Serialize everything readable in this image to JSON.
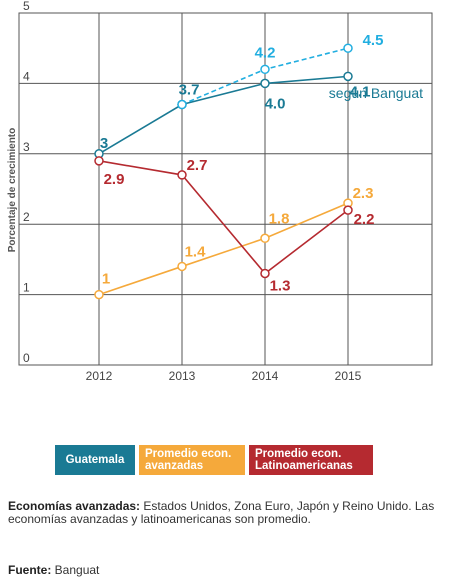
{
  "chart_data": {
    "type": "line",
    "ylabel": "Porcentaje de crecimiento",
    "ylim": [
      0,
      5
    ],
    "y_ticks": [
      "0",
      "1",
      "2",
      "3",
      "4",
      "5"
    ],
    "categories": [
      "2012",
      "2013",
      "2014",
      "2015"
    ],
    "grid": true,
    "series": [
      {
        "name": "Guatemala",
        "color": "#1a7a94",
        "style": "solid",
        "values": [
          3,
          3.7,
          4.0,
          4.1
        ],
        "labels": [
          "3",
          "3.7",
          "4.0",
          "4.1"
        ]
      },
      {
        "name": "Guatemala",
        "color": "#21aee0",
        "style": "dashed",
        "values": [
          null,
          3.7,
          4.2,
          4.5
        ],
        "labels": [
          "",
          "",
          "4.2",
          "4.5"
        ]
      },
      {
        "name": "Promedio econ. avanzadas",
        "color": "#f5a93b",
        "style": "solid",
        "values": [
          1,
          1.4,
          1.8,
          2.3
        ],
        "labels": [
          "1",
          "1.4",
          "1.8",
          "2.3"
        ]
      },
      {
        "name": "Promedio econ. Latinoamericanas",
        "color": "#b52a30",
        "style": "solid",
        "values": [
          2.9,
          2.7,
          1.3,
          2.2
        ],
        "labels": [
          "2.9",
          "2.7",
          "1.3",
          "2.2"
        ]
      }
    ],
    "annotation": "según Banguat"
  },
  "legend": {
    "guatemala": "Guatemala",
    "avanzadas": "Promedio econ.\navanzadas",
    "latino": "Promedio econ.\nLatinoamericanas"
  },
  "note": {
    "bold": "Economías avanzadas:",
    "text": " Estados Unidos, Zona Euro, Japón y Reino Unido. Las economías avanzadas y latinoamericanas son promedio."
  },
  "source": {
    "bold": "Fuente:",
    "text": " Banguat"
  },
  "colors": {
    "guatemala": "#1a7a94",
    "banguat": "#21aee0",
    "avanzadas": "#f5a93b",
    "latino": "#b52a30"
  }
}
